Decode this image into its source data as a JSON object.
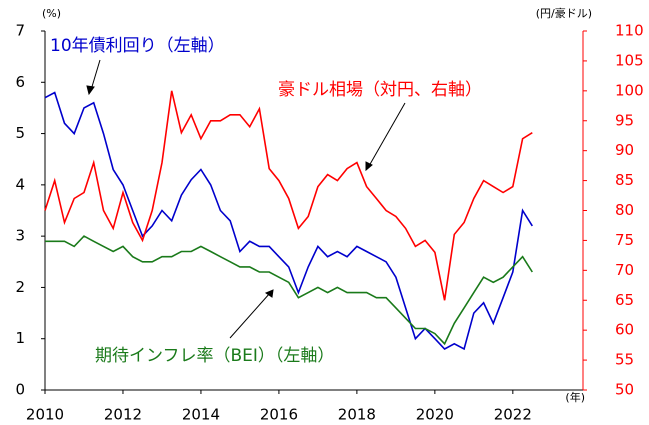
{
  "chart_data": {
    "type": "line",
    "y_unit_label": "(%)",
    "y2_unit_label": "(円/豪ドル)",
    "x_unit_label": "(年)",
    "annotations": [
      "10年債利回り（左軸）",
      "豪ドル相場（対円、右軸）",
      "期待インフレ率（BEI）（左軸）"
    ],
    "x": [
      2010,
      2010.25,
      2010.5,
      2010.75,
      2011,
      2011.25,
      2011.5,
      2011.75,
      2012,
      2012.25,
      2012.5,
      2012.75,
      2013,
      2013.25,
      2013.5,
      2013.75,
      2014,
      2014.25,
      2014.5,
      2014.75,
      2015,
      2015.25,
      2015.5,
      2015.75,
      2016,
      2016.25,
      2016.5,
      2016.75,
      2017,
      2017.25,
      2017.5,
      2017.75,
      2018,
      2018.25,
      2018.5,
      2018.75,
      2019,
      2019.25,
      2019.5,
      2019.75,
      2020,
      2020.25,
      2020.5,
      2020.75,
      2021,
      2021.25,
      2021.5,
      2021.75,
      2022,
      2022.25,
      2022.5
    ],
    "series": [
      {
        "name": "10年債利回り",
        "color": "#0000cc",
        "values": [
          5.7,
          5.8,
          5.2,
          5.0,
          5.5,
          5.6,
          5.0,
          4.3,
          4.0,
          3.5,
          3.0,
          3.2,
          3.5,
          3.3,
          3.8,
          4.1,
          4.3,
          4.0,
          3.5,
          3.3,
          2.7,
          2.9,
          2.8,
          2.8,
          2.6,
          2.4,
          1.9,
          2.4,
          2.8,
          2.6,
          2.7,
          2.6,
          2.8,
          2.7,
          2.6,
          2.5,
          2.2,
          1.6,
          1.0,
          1.2,
          1.0,
          0.8,
          0.9,
          0.8,
          1.5,
          1.7,
          1.3,
          1.8,
          2.3,
          3.5,
          3.2
        ]
      },
      {
        "name": "豪ドル相場",
        "color": "#ff0000",
        "axis": "y2",
        "values": [
          80,
          85,
          78,
          82,
          83,
          88,
          80,
          77,
          83,
          78,
          75,
          80,
          88,
          100,
          93,
          96,
          92,
          95,
          95,
          96,
          96,
          94,
          97,
          87,
          85,
          82,
          77,
          79,
          84,
          86,
          85,
          87,
          88,
          84,
          82,
          80,
          79,
          77,
          74,
          75,
          73,
          65,
          76,
          78,
          82,
          85,
          84,
          83,
          84,
          92,
          93
        ]
      },
      {
        "name": "期待インフレ率",
        "color": "#1a7a1a",
        "values": [
          2.9,
          2.9,
          2.9,
          2.8,
          3.0,
          2.9,
          2.8,
          2.7,
          2.8,
          2.6,
          2.5,
          2.5,
          2.6,
          2.6,
          2.7,
          2.7,
          2.8,
          2.7,
          2.6,
          2.5,
          2.4,
          2.4,
          2.3,
          2.3,
          2.2,
          2.1,
          1.8,
          1.9,
          2.0,
          1.9,
          2.0,
          1.9,
          1.9,
          1.9,
          1.8,
          1.8,
          1.6,
          1.4,
          1.2,
          1.2,
          1.1,
          0.9,
          1.3,
          1.6,
          1.9,
          2.2,
          2.1,
          2.2,
          2.4,
          2.6,
          2.3
        ]
      }
    ],
    "xlim": [
      2010,
      2023.8
    ],
    "xticks": [
      2010,
      2012,
      2014,
      2016,
      2018,
      2020,
      2022
    ],
    "ylim": [
      0,
      7
    ],
    "yticks": [
      0,
      1,
      2,
      3,
      4,
      5,
      6,
      7
    ],
    "y2lim": [
      50,
      110
    ],
    "y2ticks": [
      50,
      55,
      60,
      65,
      70,
      75,
      80,
      85,
      90,
      95,
      100,
      105,
      110
    ],
    "y2_color": "#ff0000"
  }
}
